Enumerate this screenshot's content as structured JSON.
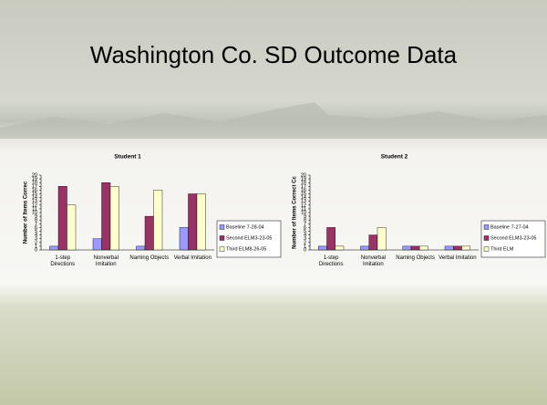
{
  "slide_title": "Washington Co. SD Outcome Data",
  "chart_data": [
    {
      "type": "bar",
      "title": "Student 1",
      "y_label": "Number of Items Correc",
      "categories": [
        "1-step Directions",
        "Nonverbal Imitation",
        "Naming Objects",
        "Verbal Imitation"
      ],
      "series": [
        {
          "name": "Baseline 7-28-04",
          "color": "#9999ff",
          "values": [
            1,
            3,
            1,
            6
          ]
        },
        {
          "name": "Second ELM3-23-05",
          "color": "#993366",
          "values": [
            17,
            18,
            9,
            15
          ]
        },
        {
          "name": "Third ELM8-26-05",
          "color": "#ffffcc",
          "values": [
            12,
            17,
            16,
            15
          ]
        }
      ],
      "ylim": [
        0,
        20
      ],
      "yticks": [
        0,
        1,
        2,
        3,
        4,
        5,
        6,
        7,
        8,
        9,
        10,
        11,
        12,
        13,
        14,
        15,
        16,
        17,
        18,
        19,
        20
      ],
      "legend": "right"
    },
    {
      "type": "bar",
      "title": "Student 2",
      "y_label": "Number of Items Correct Cc",
      "categories": [
        "1-step Directions",
        "Nonverbal Imitation",
        "Naming Objects",
        "Verbal Imitation"
      ],
      "series": [
        {
          "name": "Baseline 7-27-04",
          "color": "#9999ff",
          "values": [
            1,
            1,
            1,
            1
          ]
        },
        {
          "name": "Second ELM3-23-05",
          "color": "#993366",
          "values": [
            6,
            4,
            1,
            1
          ]
        },
        {
          "name": "Third ELM",
          "color": "#ffffcc",
          "values": [
            1,
            6,
            1,
            1
          ]
        }
      ],
      "ylim": [
        0,
        20
      ],
      "yticks": [
        0,
        1,
        2,
        3,
        4,
        5,
        6,
        7,
        8,
        9,
        10,
        11,
        12,
        13,
        14,
        15,
        16,
        17,
        18,
        19,
        20
      ],
      "legend": "right"
    }
  ]
}
